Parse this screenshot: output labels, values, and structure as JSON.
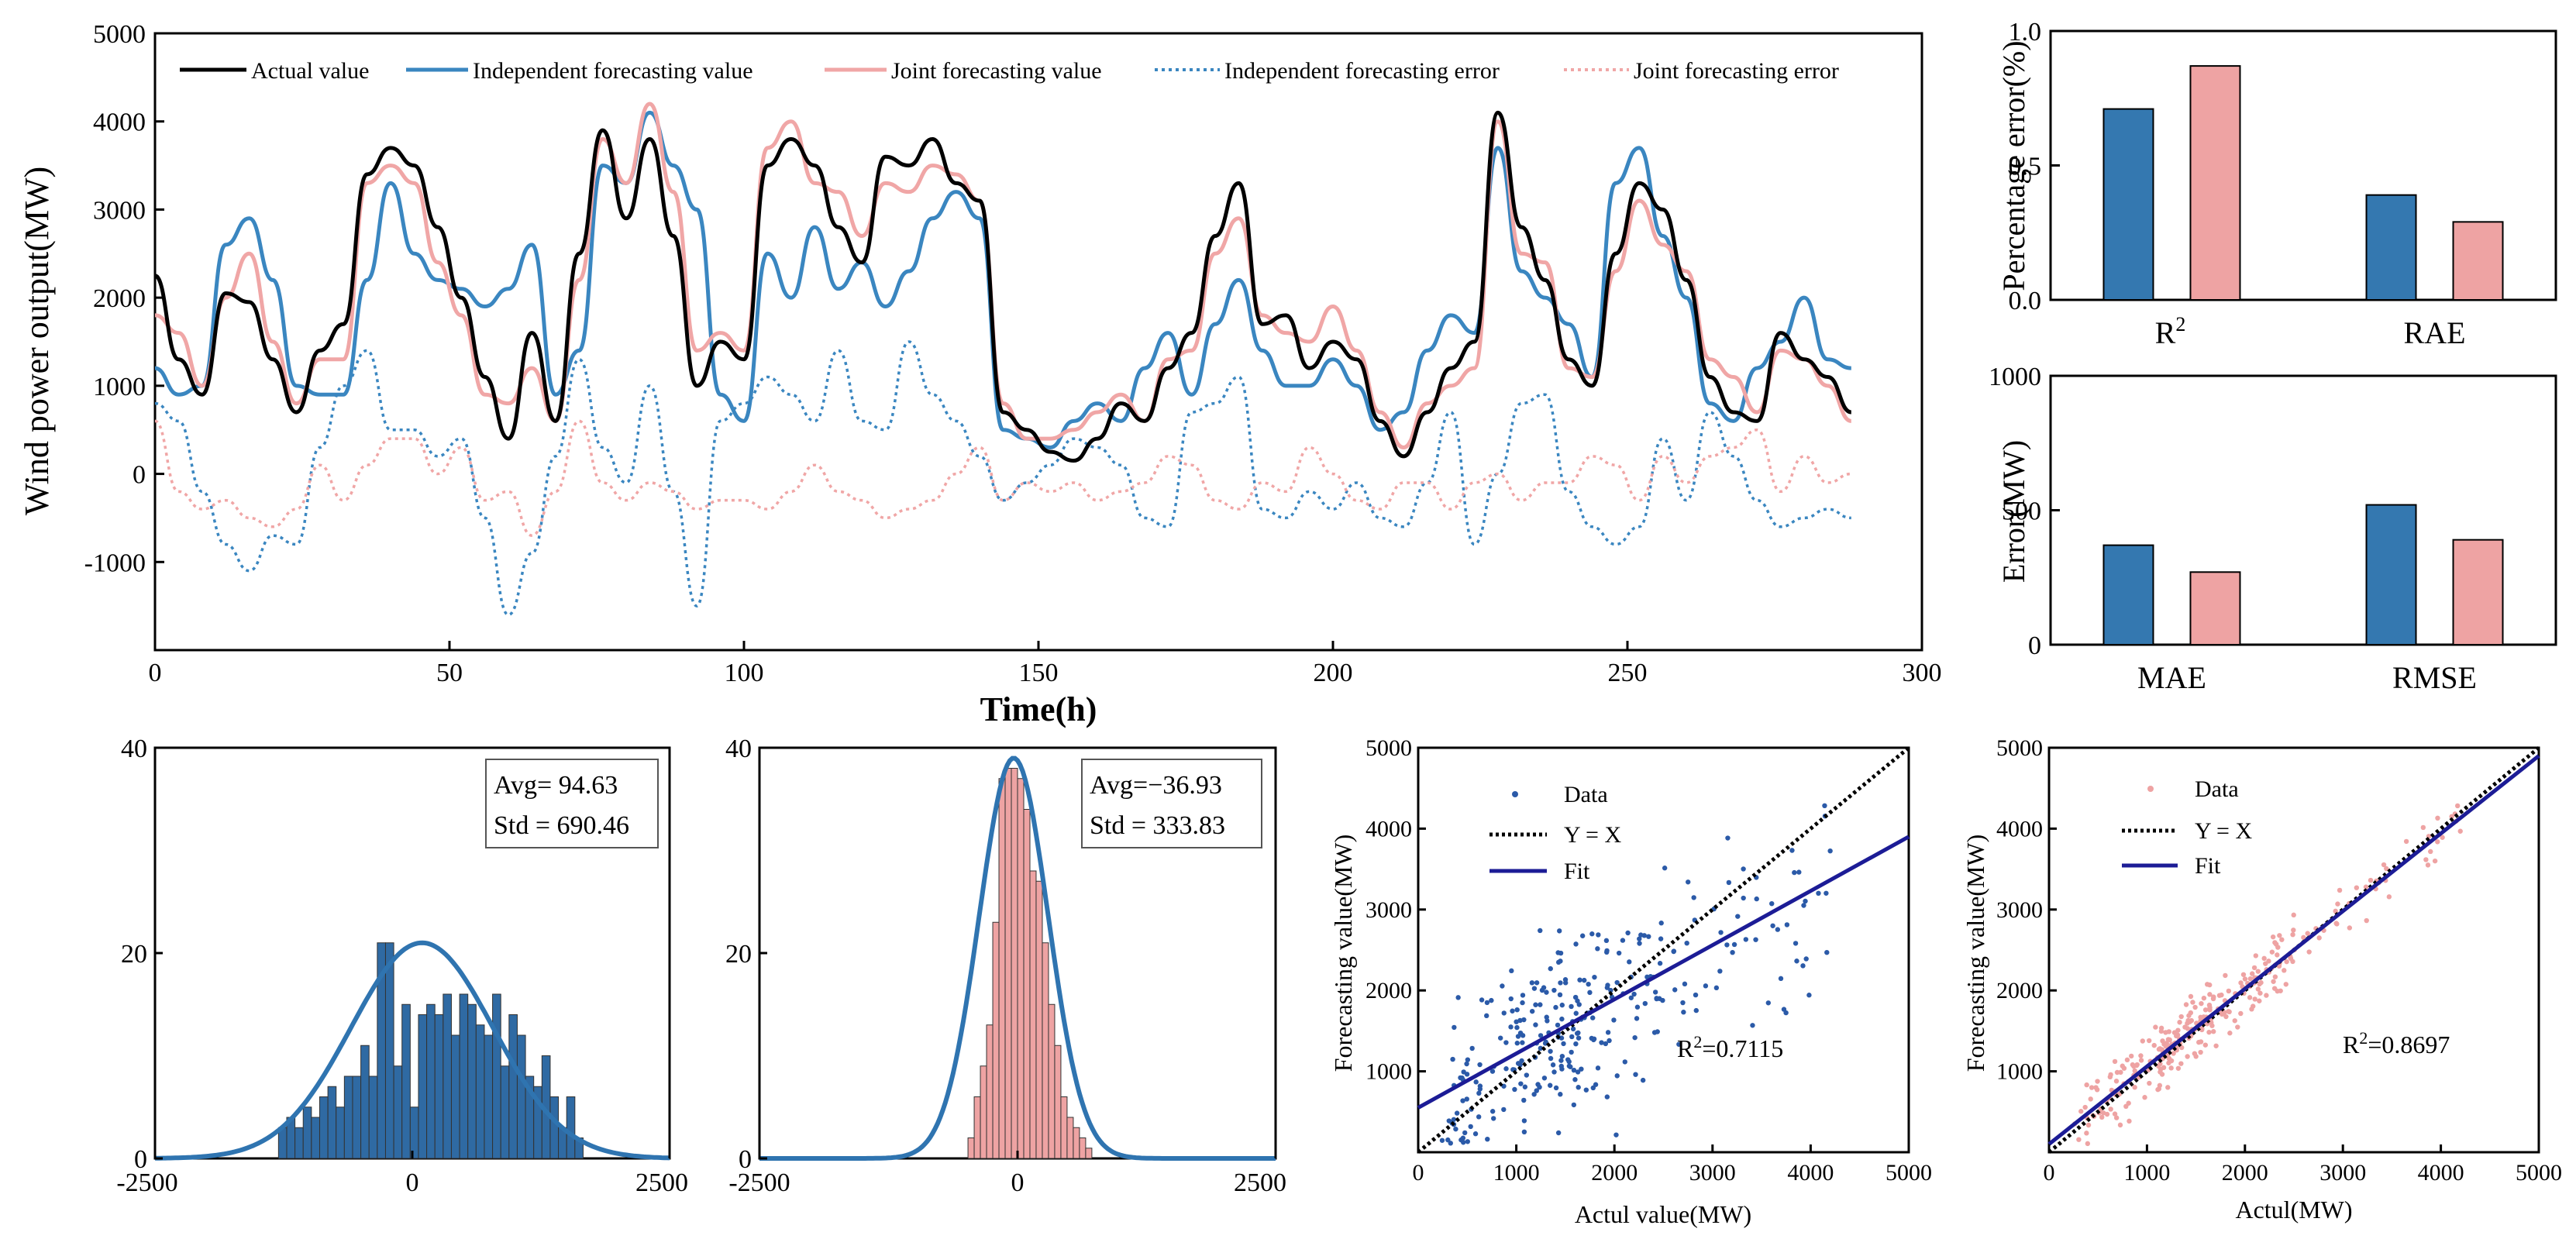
{
  "colors": {
    "actual": "#000000",
    "independent": "#3a86c0",
    "joint": "#f0a6a6",
    "bar_blue": "#3478b0",
    "bar_pink": "#eea3a3",
    "scatter_blue": "#2b5aa8",
    "fit": "#1c1c96"
  },
  "chart_data": [
    {
      "type": "line",
      "id": "main",
      "xlabel": "Time(h)",
      "ylabel": "Wind power output(MW)",
      "xlim": [
        0,
        300
      ],
      "ylim": [
        -2000,
        5000
      ],
      "xticks": [
        "0",
        "50",
        "100",
        "150",
        "200",
        "250",
        "300"
      ],
      "yticks": [
        "-1000",
        "0",
        "1000",
        "2000",
        "3000",
        "4000",
        "5000"
      ],
      "legend": [
        "Actual value",
        "Independent forecasting value",
        "Joint forecasting value",
        "Independent forecasting error",
        "Joint forecasting error"
      ],
      "x": [
        0,
        4,
        8,
        12,
        16,
        20,
        24,
        28,
        32,
        36,
        40,
        44,
        48,
        52,
        56,
        60,
        64,
        68,
        72,
        76,
        80,
        84,
        88,
        92,
        96,
        100,
        104,
        108,
        112,
        116,
        120,
        124,
        128,
        132,
        136,
        140,
        144,
        148,
        152,
        156,
        160,
        164,
        168,
        172,
        176,
        180,
        184,
        188,
        192,
        196,
        200,
        204,
        208,
        212,
        216,
        220,
        224,
        228,
        232,
        236,
        240,
        244,
        248,
        252,
        256,
        260,
        264,
        268,
        272,
        276,
        280,
        284,
        288
      ],
      "series": [
        {
          "name": "Actual value",
          "values": [
            2250,
            1300,
            900,
            2050,
            1950,
            1300,
            700,
            1400,
            1700,
            3400,
            3700,
            3500,
            2800,
            2000,
            1100,
            400,
            1600,
            600,
            2500,
            3900,
            2900,
            3800,
            2700,
            1000,
            1500,
            1300,
            3500,
            3800,
            3500,
            2800,
            2400,
            3600,
            3500,
            3800,
            3300,
            3100,
            700,
            500,
            250,
            150,
            400,
            800,
            600,
            1200,
            1600,
            2700,
            3300,
            1700,
            1800,
            1200,
            1500,
            1300,
            600,
            200,
            700,
            1200,
            1500,
            4100,
            2800,
            2200,
            1300,
            1000,
            2500,
            3300,
            3000,
            2200,
            1100,
            700,
            600,
            1600,
            1300,
            1100,
            700
          ]
        },
        {
          "name": "Independent forecasting value",
          "values": [
            1200,
            900,
            1000,
            2600,
            2900,
            2200,
            1000,
            900,
            900,
            2200,
            3300,
            2500,
            2200,
            2100,
            1900,
            2100,
            2600,
            900,
            1400,
            3500,
            3300,
            4100,
            3500,
            3000,
            900,
            600,
            2500,
            2000,
            2800,
            2100,
            2400,
            1900,
            2300,
            2900,
            3200,
            2900,
            500,
            400,
            300,
            600,
            800,
            600,
            1200,
            1600,
            900,
            1700,
            2200,
            1400,
            1000,
            1000,
            1300,
            1000,
            500,
            700,
            1400,
            1800,
            1600,
            3700,
            2300,
            2000,
            1700,
            1100,
            3300,
            3700,
            2700,
            2000,
            800,
            600,
            1200,
            1500,
            2000,
            1300,
            1200
          ]
        },
        {
          "name": "Joint forecasting value",
          "values": [
            1800,
            1600,
            1000,
            2000,
            2500,
            1500,
            800,
            1300,
            1300,
            3300,
            3500,
            3300,
            2400,
            1800,
            900,
            800,
            1200,
            600,
            2200,
            3800,
            3300,
            4200,
            3200,
            1400,
            1600,
            1400,
            3700,
            4000,
            3300,
            3200,
            2700,
            3300,
            3200,
            3500,
            3400,
            3100,
            800,
            400,
            400,
            500,
            700,
            900,
            600,
            1300,
            1400,
            2500,
            2900,
            1800,
            1600,
            1500,
            1900,
            1400,
            700,
            300,
            800,
            1000,
            1200,
            4000,
            2500,
            2400,
            1200,
            1100,
            2300,
            3100,
            2600,
            2300,
            1300,
            1100,
            700,
            1400,
            1300,
            1000,
            600
          ]
        },
        {
          "name": "Independent forecasting error",
          "values": [
            800,
            600,
            -200,
            -800,
            -1100,
            -700,
            -800,
            300,
            1000,
            1400,
            500,
            500,
            200,
            400,
            -500,
            -1600,
            -900,
            200,
            1300,
            300,
            -100,
            1000,
            -200,
            -1500,
            600,
            800,
            1100,
            900,
            600,
            1400,
            600,
            500,
            1500,
            900,
            600,
            200,
            -300,
            -100,
            100,
            400,
            300,
            100,
            -500,
            -600,
            700,
            800,
            1100,
            -400,
            -500,
            -200,
            -400,
            -100,
            -500,
            -600,
            -100,
            700,
            -800,
            0,
            800,
            900,
            -200,
            -600,
            -800,
            -600,
            400,
            -300,
            700,
            200,
            -300,
            -600,
            -500,
            -400,
            -500
          ]
        },
        {
          "name": "Joint forecasting error",
          "values": [
            600,
            -200,
            -400,
            -300,
            -500,
            -600,
            -400,
            100,
            -300,
            100,
            400,
            400,
            0,
            300,
            -300,
            -200,
            -700,
            -200,
            600,
            -100,
            -300,
            -100,
            -200,
            -400,
            -300,
            -300,
            -400,
            -200,
            100,
            -200,
            -300,
            -500,
            -400,
            -300,
            0,
            300,
            -300,
            -100,
            -200,
            -100,
            -300,
            -200,
            -100,
            200,
            100,
            -300,
            -400,
            -100,
            -200,
            300,
            0,
            -300,
            -400,
            -100,
            -100,
            -400,
            -100,
            0,
            -300,
            -100,
            -100,
            200,
            100,
            -300,
            200,
            -100,
            200,
            300,
            500,
            -200,
            200,
            -100,
            0
          ]
        }
      ]
    },
    {
      "type": "bar",
      "id": "bar_top",
      "categories": [
        "R²",
        "RAE"
      ],
      "series": [
        {
          "name": "Independent",
          "values": [
            0.71,
            0.39
          ]
        },
        {
          "name": "Joint",
          "values": [
            0.87,
            0.29
          ]
        }
      ],
      "ylabel": "Percentage error(%)",
      "ylim": [
        0,
        1.0
      ],
      "yticks": [
        "0.0",
        "0.5",
        "1.0"
      ]
    },
    {
      "type": "bar",
      "id": "bar_bottom",
      "categories": [
        "MAE",
        "RMSE"
      ],
      "series": [
        {
          "name": "Independent",
          "values": [
            370,
            520
          ]
        },
        {
          "name": "Joint",
          "values": [
            270,
            390
          ]
        }
      ],
      "ylabel": "Error(MW)",
      "ylim": [
        0,
        1000
      ],
      "yticks": [
        "0",
        "500",
        "1000"
      ]
    },
    {
      "type": "bar",
      "id": "hist_independent",
      "xlim": [
        -2500,
        2500
      ],
      "ylim": [
        0,
        40
      ],
      "xticks": [
        "-2500",
        "0",
        "2500"
      ],
      "yticks": [
        "0",
        "20",
        "40"
      ],
      "bin_start": -1300,
      "bin_width": 80,
      "values": [
        3,
        4,
        3,
        5,
        4,
        6,
        7,
        5,
        8,
        8,
        11,
        8,
        21,
        21,
        9,
        15,
        5,
        14,
        15,
        14,
        16,
        12,
        16,
        15,
        13,
        12,
        16,
        9,
        14,
        12,
        8,
        7,
        10,
        6,
        3,
        6,
        2
      ],
      "mean": 94.63,
      "std": 690.46,
      "stats": {
        "avg": "Avg= 94.63",
        "std": "Std = 690.46"
      }
    },
    {
      "type": "bar",
      "id": "hist_joint",
      "xlim": [
        -2500,
        2500
      ],
      "ylim": [
        0,
        40
      ],
      "xticks": [
        "-2500",
        "0",
        "2500"
      ],
      "yticks": [
        "0",
        "20",
        "40"
      ],
      "bin_start": -480,
      "bin_width": 60,
      "values": [
        2,
        6,
        9,
        13,
        23,
        37,
        38,
        38,
        37,
        34,
        28,
        27,
        21,
        15,
        11,
        6,
        4,
        3,
        2,
        1
      ],
      "mean": -36.93,
      "std": 333.83,
      "stats": {
        "avg": "Avg=−36.93",
        "std": "Std = 333.83"
      }
    },
    {
      "type": "scatter",
      "id": "scatter_independent",
      "xlabel": "Actul value(MW)",
      "ylabel": "Forecasting value(MW)",
      "xlim": [
        0,
        5000
      ],
      "ylim": [
        0,
        5000
      ],
      "xticks": [
        "0",
        "1000",
        "2000",
        "3000",
        "4000",
        "5000"
      ],
      "yticks": [
        "1000",
        "2000",
        "3000",
        "4000",
        "5000"
      ],
      "legend": [
        "Data",
        "Y = X",
        "Fit"
      ],
      "fit": {
        "slope": 0.67,
        "intercept": 550
      },
      "r2": "0.7115"
    },
    {
      "type": "scatter",
      "id": "scatter_joint",
      "xlabel": "Actul(MW)",
      "ylabel": "Forecasting value(MW)",
      "xlim": [
        0,
        5000
      ],
      "ylim": [
        0,
        5000
      ],
      "xticks": [
        "0",
        "1000",
        "2000",
        "3000",
        "4000",
        "5000"
      ],
      "yticks": [
        "1000",
        "2000",
        "3000",
        "4000",
        "5000"
      ],
      "legend": [
        "Data",
        "Y = X",
        "Fit"
      ],
      "fit": {
        "slope": 0.96,
        "intercept": 100
      },
      "r2": "0.8697"
    }
  ]
}
